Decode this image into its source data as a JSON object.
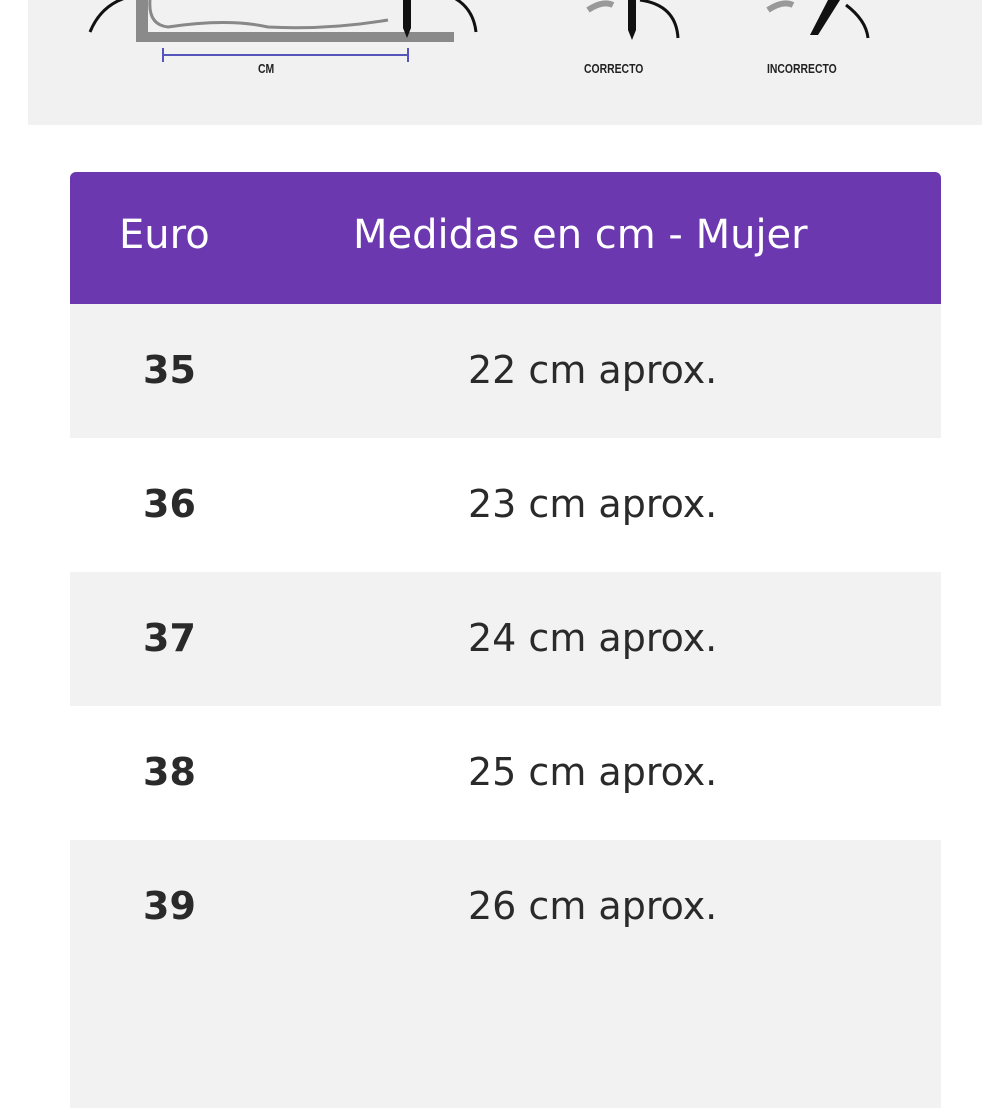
{
  "guide": {
    "measure_label": "CM",
    "correct_label": "CORRECTO",
    "incorrect_label": "INCORRECTO"
  },
  "table": {
    "headers": [
      "Euro",
      "Medidas en cm - Mujer"
    ],
    "rows": [
      {
        "euro": "35",
        "cm": "22 cm aprox."
      },
      {
        "euro": "36",
        "cm": "23 cm aprox."
      },
      {
        "euro": "37",
        "cm": "24 cm aprox."
      },
      {
        "euro": "38",
        "cm": "25 cm aprox."
      },
      {
        "euro": "39",
        "cm": "26 cm aprox."
      }
    ]
  },
  "colors": {
    "header": "#6b38b0",
    "stripe": "#f2f2f2"
  }
}
